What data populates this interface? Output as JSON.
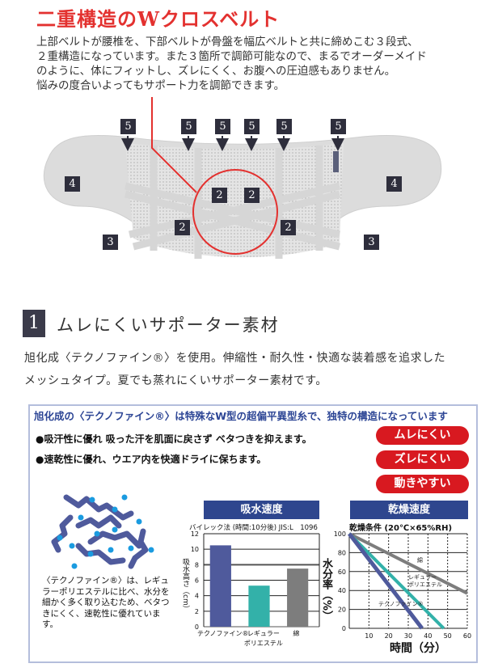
{
  "header": {
    "title": "二重構造のWクロスベルト",
    "description": [
      "上部ベルトが腰椎を、下部ベルトが骨盤を幅広ベルトと共に締めこむ３段式、",
      "２重構造になっています。また３箇所で調節可能なので、まるでオーダーメイド",
      "のように、体にフィットし、ズレにくく、お腹への圧迫感もありません。",
      "悩みの度合いよってもサポート力を調節できます。"
    ]
  },
  "diagram": {
    "labels_5": [
      "5",
      "5",
      "5",
      "5",
      "5",
      "5"
    ],
    "labels_4": [
      "4",
      "4"
    ],
    "labels_2": [
      "2",
      "2",
      "2",
      "2"
    ],
    "labels_3": [
      "3",
      "3"
    ],
    "highlight_color": "#e3312f"
  },
  "section1": {
    "number": "1",
    "title": "ムレにくいサポーター素材",
    "body": [
      "旭化成〈テクノファイン®〉を使用。伸縮性・耐久性・快適な装着感を追求した",
      "メッシュタイプ。夏でも蒸れにくいサポーター素材です。"
    ]
  },
  "feature_box": {
    "title": "旭化成の〈テクノファイン®〉は特殊なW型の超偏平異型糸で、独特の構造になっています",
    "bullets": [
      "●吸汗性に優れ  吸った汗を肌面に戻さず  ベタつきを抑えます。",
      "●速乾性に優れ、ウエア内を快適ドライに保ちます。"
    ],
    "badges": [
      "ムレにくい",
      "ズレにくい",
      "動きやすい"
    ],
    "caption": "〈テクノファイン®〉は、レギュラーポリエステルに比べ、水分を細かく多く取り込むため、ベタつきにくく、速乾性に優れています。",
    "colors": {
      "accent_blue": "#2e468e",
      "badge_red": "#d81920",
      "fiber": "#4f5a9c",
      "water": "#1a9be0"
    }
  },
  "chart_data": [
    {
      "type": "bar",
      "title": "吸水速度",
      "subtitle": "バイレック法 (時間:10分後) JIS:L　1096",
      "ylabel": "吸水高さ（cm）",
      "categories": [
        "テクノファイン®",
        "レギュラーポリエステル",
        "綿"
      ],
      "category_lines": [
        [
          "テクノファイン®"
        ],
        [
          "レギュラー",
          "ポリエステル"
        ],
        [
          "綿"
        ]
      ],
      "values": [
        10.5,
        5.3,
        7.5
      ],
      "colors": [
        "#4f5a9c",
        "#33b1a9",
        "#7d7d7d"
      ],
      "ylim": [
        0,
        12
      ],
      "yticks": [
        "0",
        "2",
        "4",
        "6",
        "8",
        "10",
        "12"
      ],
      "grid": true
    },
    {
      "type": "line",
      "title": "乾燥速度",
      "subtitle": "乾燥条件 (20℃×65%RH)",
      "xlabel": "時間（分）",
      "ylabel": "水分率（%）",
      "xlim": [
        0,
        60
      ],
      "ylim": [
        0,
        100
      ],
      "xticks": [
        "10",
        "20",
        "30",
        "40",
        "50",
        "60"
      ],
      "yticks": [
        "0",
        "20",
        "40",
        "60",
        "80",
        "100"
      ],
      "grid": true,
      "series": [
        {
          "name": "テクノファイン®",
          "x": [
            0,
            37
          ],
          "y": [
            100,
            0
          ],
          "color": "#4f5a9c"
        },
        {
          "name": "レギュラーポリエステル",
          "label_lines": [
            "レギュラー",
            "ポリエステル"
          ],
          "x": [
            0,
            48
          ],
          "y": [
            100,
            0
          ],
          "color": "#33b1a9"
        },
        {
          "name": "綿",
          "x": [
            0,
            60
          ],
          "y": [
            100,
            37
          ],
          "color": "#7d7d7d"
        }
      ]
    }
  ]
}
